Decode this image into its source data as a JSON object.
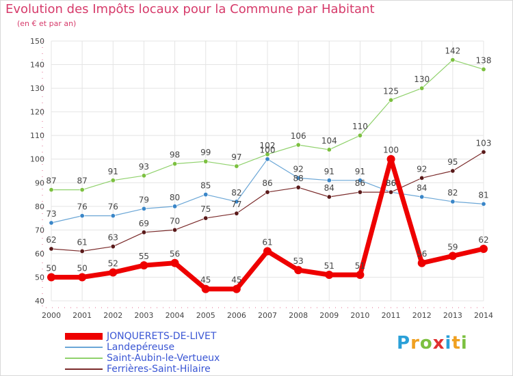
{
  "title": "Evolution des Impôts locaux pour la Commune par Habitant",
  "subtitle": "(en € et par an)",
  "logo": {
    "letters": [
      {
        "ch": "P",
        "color": "#2aa0d8"
      },
      {
        "ch": "r",
        "color": "#f0a020"
      },
      {
        "ch": "o",
        "color": "#7cc040"
      },
      {
        "ch": "x",
        "color": "#e03030"
      },
      {
        "ch": "i",
        "color": "#2aa0d8"
      },
      {
        "ch": "t",
        "color": "#f0a020"
      },
      {
        "ch": "i",
        "color": "#7cc040"
      }
    ]
  },
  "chart_data": {
    "type": "line",
    "categories": [
      "2000",
      "2001",
      "2002",
      "2003",
      "2004",
      "2005",
      "2006",
      "2007",
      "2008",
      "2009",
      "2010",
      "2011",
      "2012",
      "2013",
      "2014"
    ],
    "ylim": [
      40,
      150
    ],
    "yticks": [
      40,
      50,
      60,
      70,
      80,
      90,
      100,
      110,
      120,
      130,
      140,
      150
    ],
    "grid": true,
    "legend_position": "bottom-left",
    "series": [
      {
        "name": "Saint-Aubin-le-Vertueux",
        "color": "#8fd16b",
        "marker": "#7cc040",
        "width": 1.2,
        "values": [
          87,
          87,
          91,
          93,
          98,
          99,
          97,
          102,
          106,
          104,
          110,
          125,
          130,
          142,
          138
        ]
      },
      {
        "name": "Landepéreuse",
        "color": "#6aa6d6",
        "marker": "#3a86c8",
        "width": 1.2,
        "values": [
          73,
          76,
          76,
          79,
          80,
          85,
          82,
          100,
          92,
          91,
          91,
          86,
          84,
          82,
          81
        ]
      },
      {
        "name": "Ferrières-Saint-Hilaire",
        "color": "#7a2a2a",
        "marker": "#5a1a1a",
        "width": 1.2,
        "values": [
          62,
          61,
          63,
          69,
          70,
          75,
          77,
          86,
          88,
          84,
          86,
          86,
          92,
          95,
          103
        ]
      },
      {
        "name": "JONQUERETS-DE-LIVET",
        "color": "#ee0000",
        "marker": "#ee0000",
        "width": 7,
        "values": [
          50,
          50,
          52,
          55,
          56,
          45,
          45,
          61,
          53,
          51,
          51,
          100,
          56,
          59,
          62
        ]
      }
    ],
    "legend_order": [
      "JONQUERETS-DE-LIVET",
      "Landepéreuse",
      "Saint-Aubin-le-Vertueux",
      "Ferrières-Saint-Hilaire"
    ]
  }
}
